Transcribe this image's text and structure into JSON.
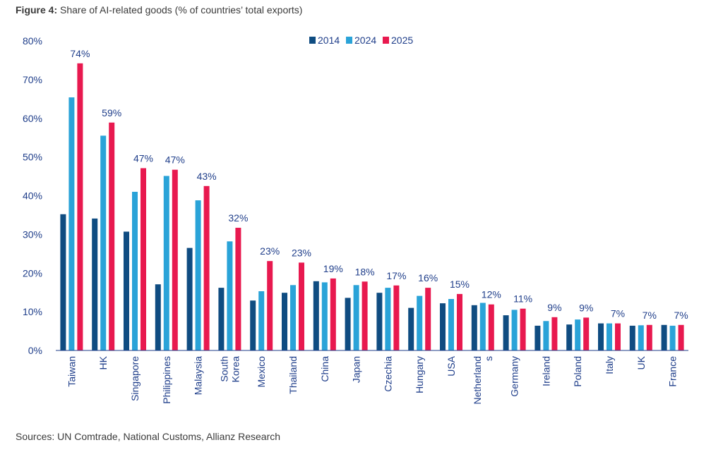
{
  "figure": {
    "title_lead": "Figure 4:",
    "title_text": " Share of AI-related goods (% of countries’ total exports)",
    "source": "Sources: UN Comtrade, National Customs, Allianz Research"
  },
  "chart_data": {
    "type": "bar",
    "title": "Share of AI-related goods (% of countries’ total exports)",
    "xlabel": "",
    "ylabel": "",
    "ylim": [
      0,
      80
    ],
    "yticks": [
      "0%",
      "10%",
      "20%",
      "30%",
      "40%",
      "50%",
      "60%",
      "70%",
      "80%"
    ],
    "grid": false,
    "legend_position": "top",
    "categories": [
      [
        "Taiwan"
      ],
      [
        "HK"
      ],
      [
        "Singapore"
      ],
      [
        "Philippines"
      ],
      [
        "Malaysia"
      ],
      [
        "South",
        "Korea"
      ],
      [
        "Mexico"
      ],
      [
        "Thailand"
      ],
      [
        "China"
      ],
      [
        "Japan"
      ],
      [
        "Czechia"
      ],
      [
        "Hungary"
      ],
      [
        "USA"
      ],
      [
        "Netherland",
        "s"
      ],
      [
        "Germany"
      ],
      [
        "Ireland"
      ],
      [
        "Poland"
      ],
      [
        "Italy"
      ],
      [
        "UK"
      ],
      [
        "France"
      ]
    ],
    "series": [
      {
        "name": "2014",
        "color": "#0f4c81",
        "values": [
          35.2,
          34.1,
          30.7,
          17.1,
          26.5,
          16.2,
          12.9,
          14.9,
          17.9,
          13.6,
          14.9,
          11.0,
          12.2,
          11.7,
          9.1,
          6.4,
          6.7,
          7.0,
          6.4,
          6.6
        ]
      },
      {
        "name": "2024",
        "color": "#2aa3d8",
        "values": [
          65.4,
          55.5,
          41.0,
          45.1,
          38.8,
          28.2,
          15.3,
          16.9,
          17.6,
          16.9,
          16.2,
          14.1,
          13.3,
          12.3,
          10.5,
          7.6,
          8.0,
          7.0,
          6.5,
          6.4
        ]
      },
      {
        "name": "2025",
        "color": "#e8194f",
        "values": [
          74.2,
          58.9,
          47.1,
          46.7,
          42.5,
          31.7,
          23.1,
          22.7,
          18.6,
          17.8,
          16.8,
          16.2,
          14.6,
          11.9,
          10.8,
          8.6,
          8.5,
          7.0,
          6.6,
          6.6
        ]
      }
    ],
    "data_labels": [
      "74%",
      "59%",
      "47%",
      "47%",
      "43%",
      "32%",
      "23%",
      "23%",
      "19%",
      "18%",
      "17%",
      "16%",
      "15%",
      "12%",
      "11%",
      "9%",
      "9%",
      "7%",
      "7%",
      "7%"
    ]
  }
}
